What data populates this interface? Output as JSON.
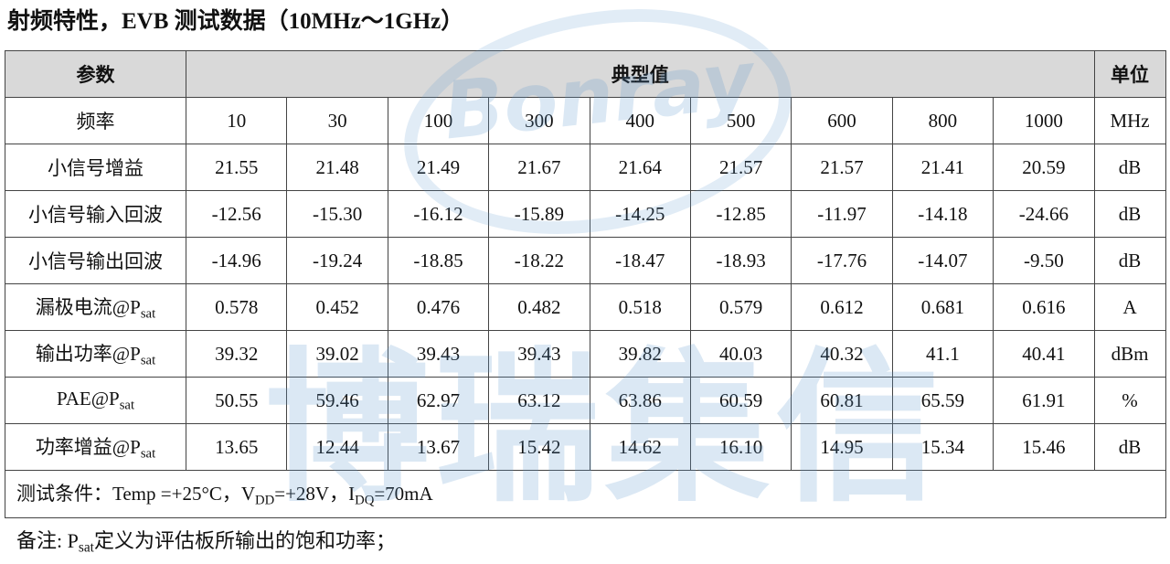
{
  "header": {
    "title": "射频特性，EVB 测试数据（10MHz～1GHz）"
  },
  "watermark": {
    "logo": "Bonray",
    "brand": "博瑞集信"
  },
  "table": {
    "columns": [
      "参数",
      "典型值",
      "单位"
    ],
    "rows": [
      {
        "label": "频率",
        "values": [
          "10",
          "30",
          "100",
          "300",
          "400",
          "500",
          "600",
          "800",
          "1000"
        ],
        "unit": "MHz"
      },
      {
        "label": "小信号增益",
        "values": [
          "21.55",
          "21.48",
          "21.49",
          "21.67",
          "21.64",
          "21.57",
          "21.57",
          "21.41",
          "20.59"
        ],
        "unit": "dB"
      },
      {
        "label": "小信号输入回波",
        "values": [
          "-12.56",
          "-15.30",
          "-16.12",
          "-15.89",
          "-14.25",
          "-12.85",
          "-11.97",
          "-14.18",
          "-24.66"
        ],
        "unit": "dB"
      },
      {
        "label": "小信号输出回波",
        "values": [
          "-14.96",
          "-19.24",
          "-18.85",
          "-18.22",
          "-18.47",
          "-18.93",
          "-17.76",
          "-14.07",
          "-9.50"
        ],
        "unit": "dB"
      },
      {
        "label": {
          "text": "漏极电流@P",
          "sub": "sat"
        },
        "values": [
          "0.578",
          "0.452",
          "0.476",
          "0.482",
          "0.518",
          "0.579",
          "0.612",
          "0.681",
          "0.616"
        ],
        "unit": "A"
      },
      {
        "label": {
          "text": "输出功率@P",
          "sub": "sat"
        },
        "values": [
          "39.32",
          "39.02",
          "39.43",
          "39.43",
          "39.82",
          "40.03",
          "40.32",
          "41.1",
          "40.41"
        ],
        "unit": "dBm"
      },
      {
        "label": {
          "text": "PAE@P",
          "sub": "sat"
        },
        "values": [
          "50.55",
          "59.46",
          "62.97",
          "63.12",
          "63.86",
          "60.59",
          "60.81",
          "65.59",
          "61.91"
        ],
        "unit": "%"
      },
      {
        "label": {
          "text": "功率增益@P",
          "sub": "sat"
        },
        "values": [
          "13.65",
          "12.44",
          "13.67",
          "15.42",
          "14.62",
          "16.10",
          "14.95",
          "15.34",
          "15.46"
        ],
        "unit": "dB"
      }
    ],
    "condition": [
      {
        "text": "测试条件：Temp =+25°C，V"
      },
      {
        "sub": "DD"
      },
      {
        "text": "=+28V，I"
      },
      {
        "sub": "DQ"
      },
      {
        "text": "=70mA"
      }
    ]
  },
  "note": [
    {
      "text": "备注: P"
    },
    {
      "sub": "sat"
    },
    {
      "text": "定义为评估板所输出的饱和功率；"
    }
  ]
}
